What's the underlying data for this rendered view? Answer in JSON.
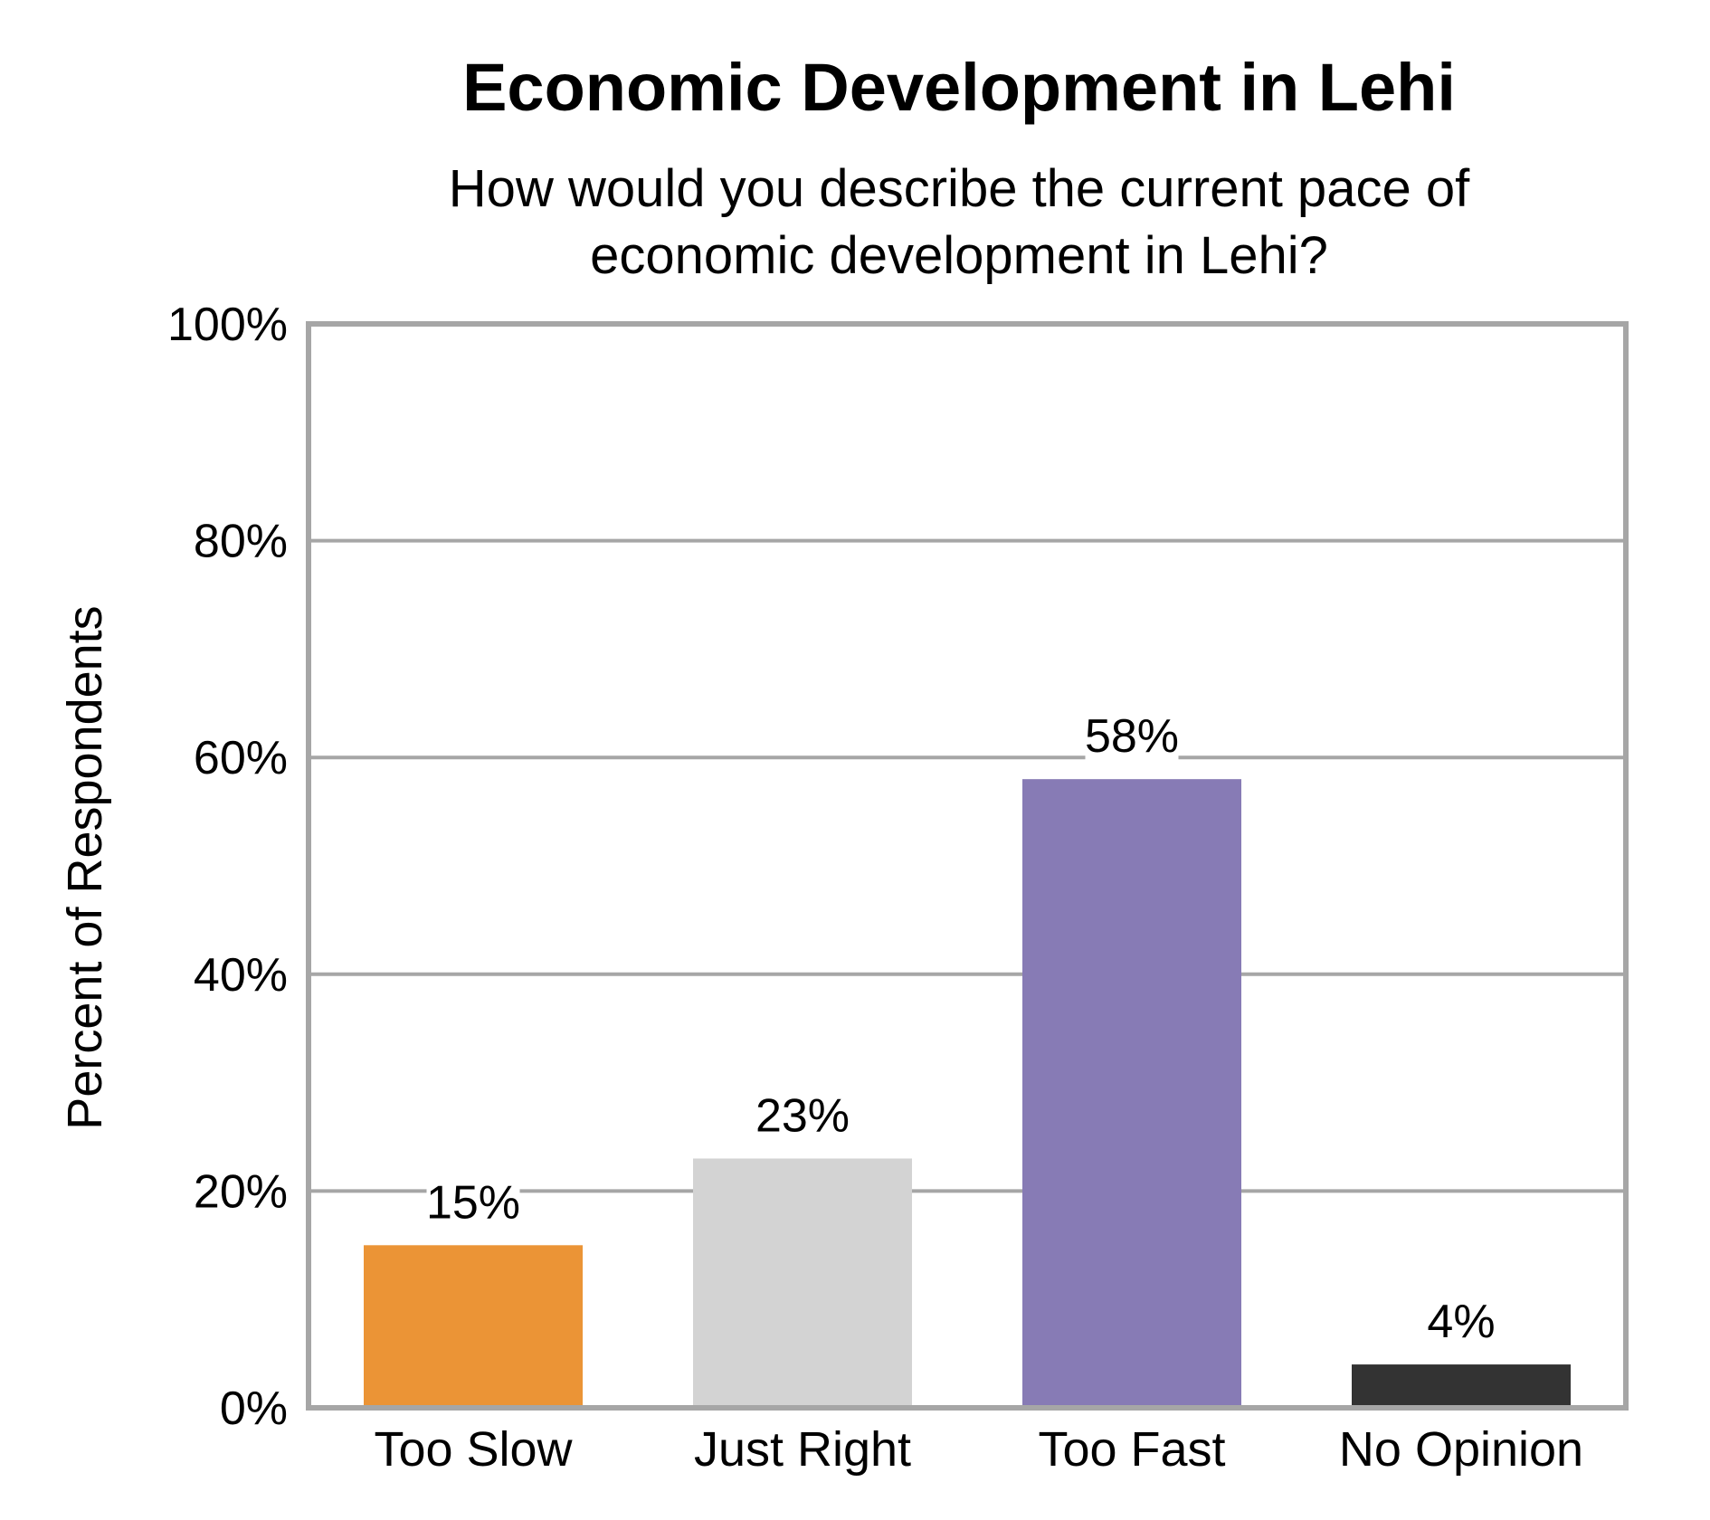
{
  "chart_data": {
    "type": "bar",
    "title": "Economic Development in Lehi",
    "subtitle_lines": [
      "How would you describe the current pace of",
      "economic development in Lehi?"
    ],
    "xlabel": "",
    "ylabel": "Percent of Respondents",
    "ylim": [
      0,
      100
    ],
    "yticks": [
      0,
      20,
      40,
      60,
      80,
      100
    ],
    "ytick_labels": [
      "0%",
      "20%",
      "40%",
      "60%",
      "80%",
      "100%"
    ],
    "categories": [
      "Too Slow",
      "Just Right",
      "Too Fast",
      "No Opinion"
    ],
    "values": [
      15,
      23,
      58,
      4
    ],
    "value_labels": [
      "15%",
      "23%",
      "58%",
      "4%"
    ],
    "bar_colors": [
      "#EB9436",
      "#D3D3D3",
      "#877BB5",
      "#333333"
    ],
    "grid": true,
    "gridline_color": "#A6A6A6",
    "legend": "none"
  }
}
